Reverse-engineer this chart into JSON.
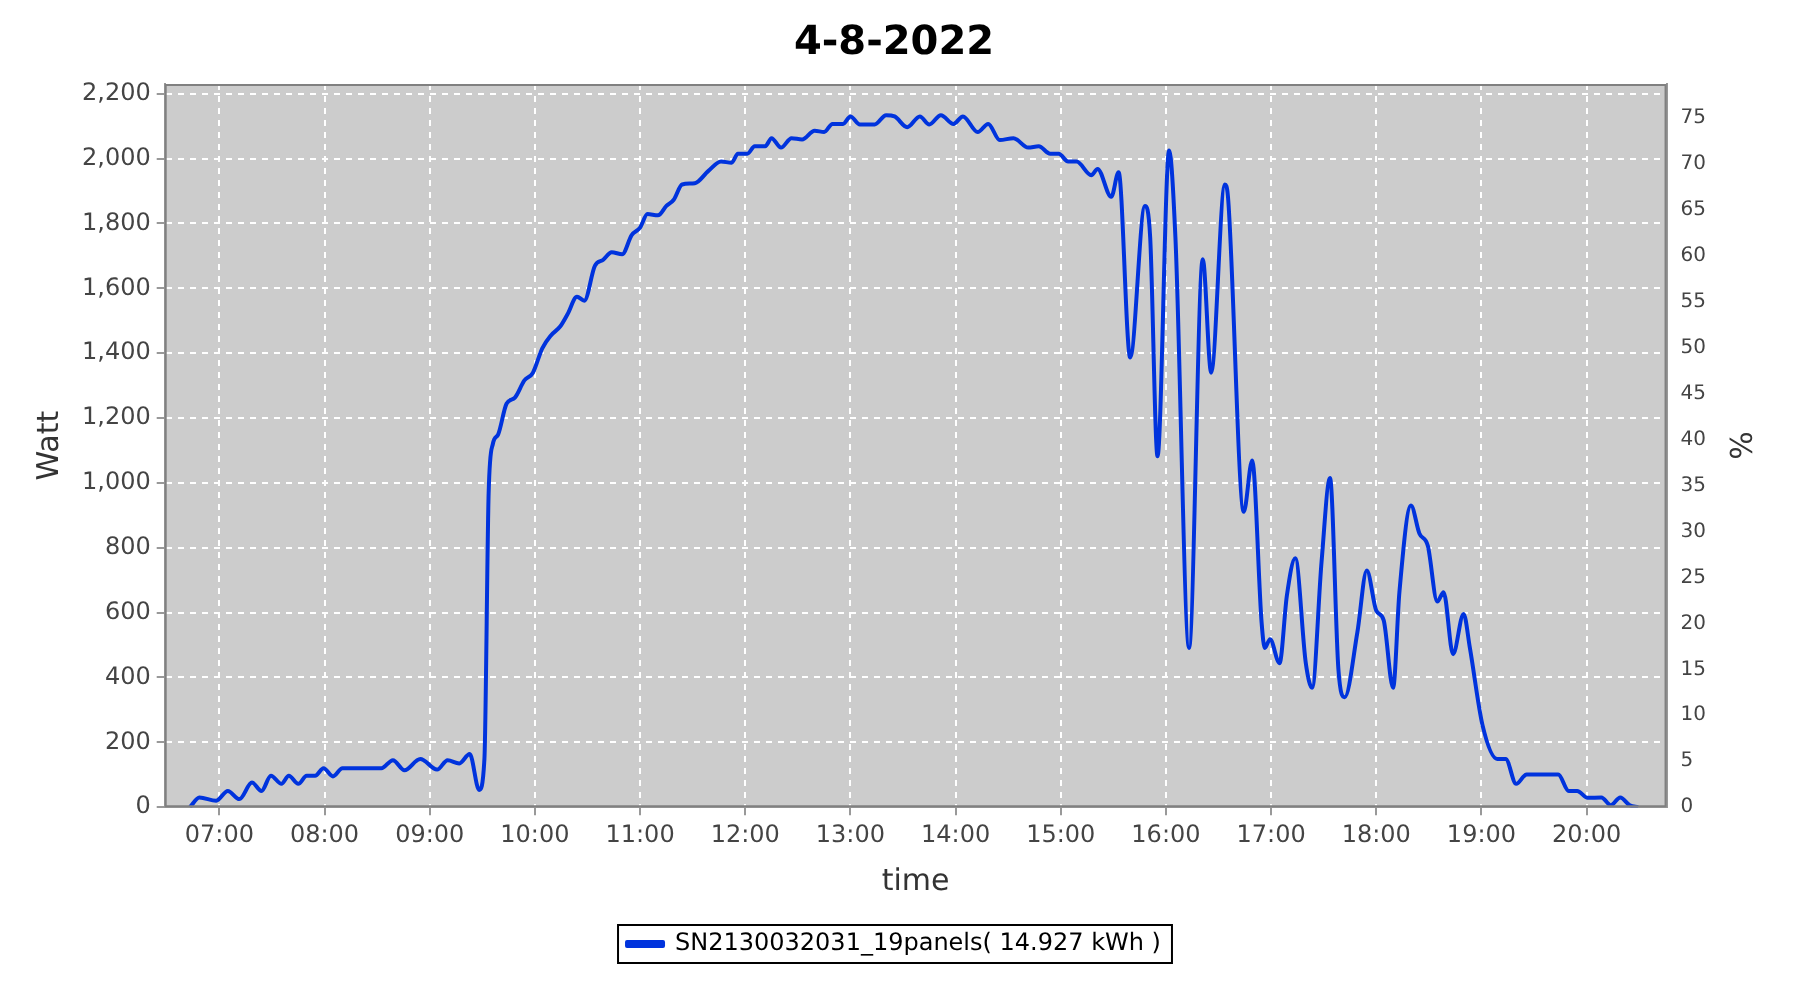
{
  "chart_data": {
    "type": "line",
    "title": "4-8-2022",
    "xlabel": "time",
    "ylabel": "Watt",
    "y2label": "%",
    "xlim": [
      6.48,
      20.76
    ],
    "xticks": [
      {
        "value": 7,
        "label": "07:00"
      },
      {
        "value": 8,
        "label": "08:00"
      },
      {
        "value": 9,
        "label": "09:00"
      },
      {
        "value": 10,
        "label": "10:00"
      },
      {
        "value": 11,
        "label": "11:00"
      },
      {
        "value": 12,
        "label": "12:00"
      },
      {
        "value": 13,
        "label": "13:00"
      },
      {
        "value": 14,
        "label": "14:00"
      },
      {
        "value": 15,
        "label": "15:00"
      },
      {
        "value": 16,
        "label": "16:00"
      },
      {
        "value": 17,
        "label": "17:00"
      },
      {
        "value": 18,
        "label": "18:00"
      },
      {
        "value": 19,
        "label": "19:00"
      },
      {
        "value": 20,
        "label": "20:00"
      }
    ],
    "ylim": [
      0,
      2230
    ],
    "yticks": [
      0,
      200,
      400,
      600,
      800,
      {
        "value": 1000,
        "label": "1,000"
      },
      {
        "value": 1200,
        "label": "1,200"
      },
      {
        "value": 1400,
        "label": "1,400"
      },
      {
        "value": 1600,
        "label": "1,600"
      },
      {
        "value": 1800,
        "label": "1,800"
      },
      {
        "value": 2000,
        "label": "2,000"
      },
      {
        "value": 2200,
        "label": "2,200"
      }
    ],
    "y2lim": [
      0,
      78.7
    ],
    "y2ticks": [
      0,
      5,
      10,
      15,
      20,
      25,
      30,
      35,
      40,
      45,
      50,
      55,
      60,
      65,
      70,
      75
    ],
    "grid": true,
    "legend": "bottom",
    "marker": "none",
    "line_style": "solid",
    "series": [
      {
        "name": "SN2130032031_19panels( 14.927 kWh )",
        "color": "#0033dd",
        "x": [
          6.72,
          6.81,
          6.97,
          7.08,
          7.19,
          7.31,
          7.4,
          7.49,
          7.59,
          7.66,
          7.75,
          7.83,
          7.91,
          7.99,
          8.08,
          8.17,
          8.54,
          8.65,
          8.76,
          8.91,
          9.07,
          9.17,
          9.28,
          9.38,
          9.47,
          9.52,
          9.56,
          9.6,
          9.65,
          9.73,
          9.81,
          9.9,
          9.98,
          10.07,
          10.15,
          10.24,
          10.31,
          10.4,
          10.47,
          10.57,
          10.65,
          10.73,
          10.83,
          10.92,
          11.0,
          11.07,
          11.17,
          11.25,
          11.32,
          11.4,
          11.52,
          11.65,
          11.77,
          11.87,
          11.93,
          12.02,
          12.09,
          12.19,
          12.25,
          12.34,
          12.44,
          12.54,
          12.66,
          12.75,
          12.83,
          12.93,
          13.0,
          13.09,
          13.23,
          13.34,
          13.42,
          13.54,
          13.66,
          13.75,
          13.86,
          13.98,
          14.07,
          14.21,
          14.31,
          14.42,
          14.55,
          14.69,
          14.79,
          14.9,
          14.98,
          15.07,
          15.15,
          15.29,
          15.35,
          15.48,
          15.55,
          15.66,
          15.8,
          15.85,
          15.92,
          16.03,
          16.09,
          16.22,
          16.35,
          16.43,
          16.56,
          16.59,
          16.74,
          16.82,
          16.91,
          16.94,
          16.99,
          17.08,
          17.15,
          17.23,
          17.33,
          17.39,
          17.48,
          17.56,
          17.64,
          17.7,
          17.82,
          17.91,
          18.0,
          18.07,
          18.16,
          18.22,
          18.33,
          18.41,
          18.49,
          18.58,
          18.64,
          18.73,
          18.83,
          18.89,
          19.01,
          19.15,
          19.23,
          19.33,
          19.43,
          19.73,
          19.83,
          19.91,
          20.01,
          20.14,
          20.23,
          20.32,
          20.41,
          20.49
        ],
        "values": [
          0,
          30,
          20,
          50,
          25,
          76,
          50,
          97,
          72,
          97,
          72,
          97,
          97,
          120,
          95,
          120,
          120,
          145,
          114,
          149,
          116,
          145,
          135,
          164,
          53,
          149,
          968,
          1120,
          1149,
          1244,
          1263,
          1316,
          1339,
          1415,
          1454,
          1482,
          1520,
          1574,
          1562,
          1669,
          1688,
          1711,
          1705,
          1764,
          1787,
          1829,
          1825,
          1854,
          1873,
          1920,
          1924,
          1962,
          1991,
          1987,
          2015,
          2015,
          2038,
          2038,
          2063,
          2034,
          2063,
          2059,
          2086,
          2082,
          2107,
          2107,
          2130,
          2105,
          2105,
          2134,
          2130,
          2097,
          2130,
          2105,
          2134,
          2107,
          2130,
          2082,
          2107,
          2057,
          2063,
          2034,
          2038,
          2015,
          2015,
          1991,
          1991,
          1949,
          1968,
          1882,
          1958,
          1387,
          1854,
          1758,
          1082,
          2025,
          1758,
          491,
          1690,
          1340,
          1920,
          1882,
          911,
          1069,
          568,
          491,
          518,
          444,
          653,
          768,
          444,
          368,
          758,
          1015,
          425,
          339,
          539,
          730,
          606,
          577,
          368,
          663,
          930,
          844,
          806,
          634,
          663,
          472,
          596,
          491,
          253,
          149,
          149,
          72,
          101,
          101,
          50,
          50,
          29,
          30,
          6,
          30,
          6,
          0
        ]
      }
    ]
  }
}
